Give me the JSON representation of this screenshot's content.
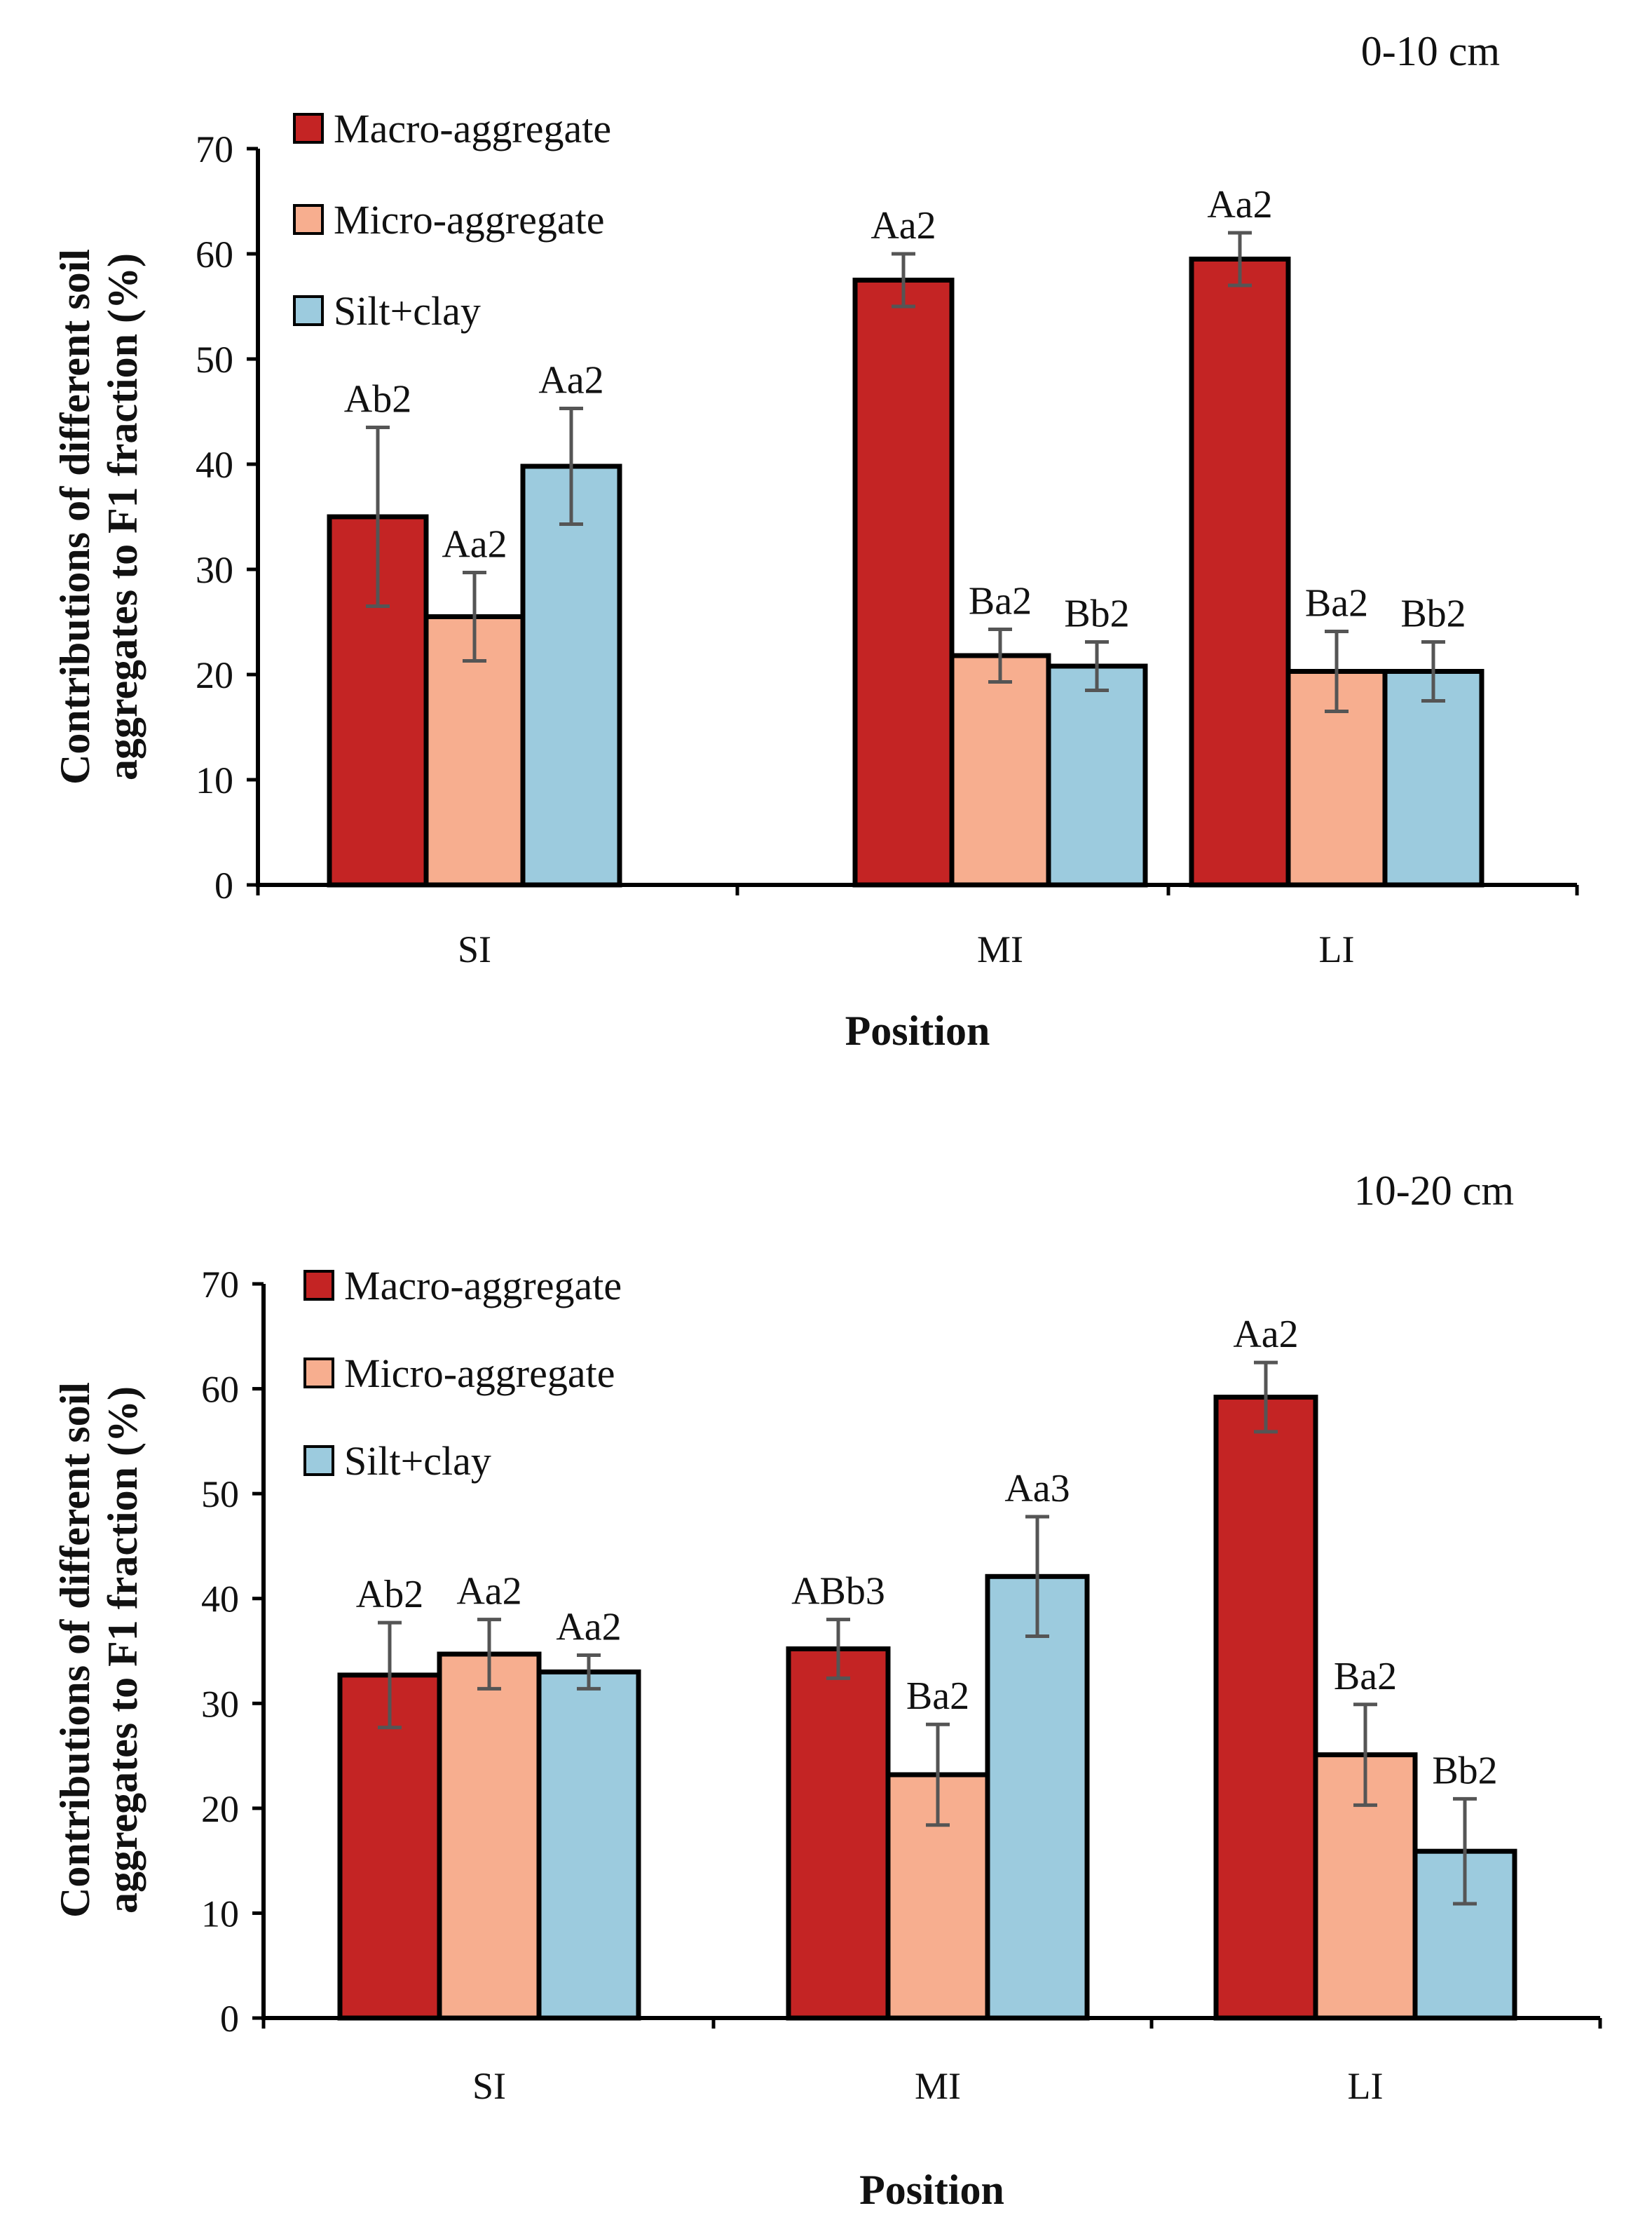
{
  "legend": [
    {
      "name": "Macro-aggregate",
      "color": "#c42424"
    },
    {
      "name": "Micro-aggregate",
      "color": "#f7ae8f"
    },
    {
      "name": "Silt+clay",
      "color": "#9ccbde"
    }
  ],
  "chart_data": [
    {
      "type": "bar",
      "title": "0-10 cm",
      "xlabel": "Position",
      "ylabel_lines": [
        "Contributions  of different  soil",
        "aggregates to F1 fraction (%)"
      ],
      "ylim": [
        0,
        70
      ],
      "yticks": [
        0,
        10,
        20,
        30,
        40,
        50,
        60,
        70
      ],
      "grid": false,
      "legend_position": "top-left",
      "categories": [
        "SI",
        "MI",
        "LI"
      ],
      "series": [
        {
          "name": "Macro-aggregate",
          "values": [
            35,
            57.5,
            59.5
          ],
          "errors": [
            8.5,
            2.5,
            2.5
          ],
          "labels": [
            "Ab2",
            "Aa2",
            "Aa2"
          ]
        },
        {
          "name": "Micro-aggregate",
          "values": [
            25.5,
            21.8,
            20.3
          ],
          "errors": [
            4.2,
            2.5,
            3.8
          ],
          "labels": [
            "Aa2",
            "Ba2",
            "Ba2"
          ]
        },
        {
          "name": "Silt+clay",
          "values": [
            39.8,
            20.8,
            20.3
          ],
          "errors": [
            5.5,
            2.3,
            2.8
          ],
          "labels": [
            "Aa2",
            "Bb2",
            "Bb2"
          ]
        }
      ]
    },
    {
      "type": "bar",
      "title": "10-20 cm",
      "xlabel": "Position",
      "ylabel_lines": [
        "Contributions  of different  soil",
        "aggregates to F1 fraction (%)"
      ],
      "ylim": [
        0,
        70
      ],
      "yticks": [
        0,
        10,
        20,
        30,
        40,
        50,
        60,
        70
      ],
      "grid": false,
      "legend_position": "top-left",
      "categories": [
        "SI",
        "MI",
        "LI"
      ],
      "series": [
        {
          "name": "Macro-aggregate",
          "values": [
            32.7,
            35.2,
            59.2
          ],
          "errors": [
            5,
            2.8,
            3.3
          ],
          "labels": [
            "Ab2",
            "ABb3",
            "Aa2"
          ]
        },
        {
          "name": "Micro-aggregate",
          "values": [
            34.7,
            23.2,
            25.1
          ],
          "errors": [
            3.3,
            4.8,
            4.8
          ],
          "labels": [
            "Aa2",
            "Ba2",
            "Ba2"
          ]
        },
        {
          "name": "Silt+clay",
          "values": [
            33,
            42.1,
            15.9
          ],
          "errors": [
            1.6,
            5.7,
            5
          ],
          "labels": [
            "Aa2",
            "Aa3",
            "Bb2"
          ]
        }
      ]
    }
  ]
}
